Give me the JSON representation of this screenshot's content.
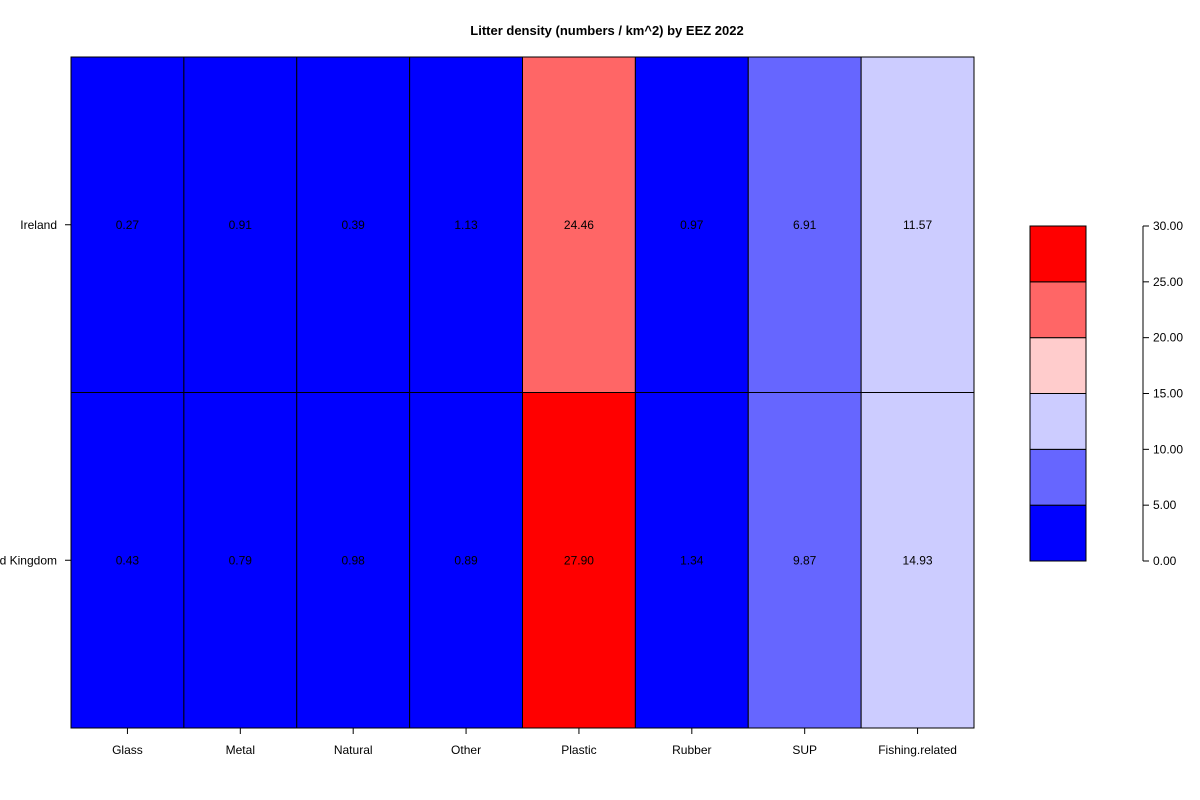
{
  "chart_data": {
    "type": "heatmap",
    "title": "Litter density (numbers / km^2) by EEZ 2022",
    "xlabel": "",
    "ylabel": "",
    "columns": [
      "Glass",
      "Metal",
      "Natural",
      "Other",
      "Plastic",
      "Rubber",
      "SUP",
      "Fishing.related"
    ],
    "rows": [
      "Ireland",
      "United Kingdom"
    ],
    "values": [
      [
        0.27,
        0.91,
        0.39,
        1.13,
        24.46,
        0.97,
        6.91,
        11.57
      ],
      [
        0.43,
        0.79,
        0.98,
        0.89,
        27.9,
        1.34,
        9.87,
        14.93
      ]
    ],
    "value_labels": [
      [
        "0.27",
        "0.91",
        "0.39",
        "1.13",
        "24.46",
        "0.97",
        "6.91",
        "11.57"
      ],
      [
        "0.43",
        "0.79",
        "0.98",
        "0.89",
        "27.90",
        "1.34",
        "9.87",
        "14.93"
      ]
    ],
    "color_scale": {
      "breaks": [
        0,
        5,
        10,
        15,
        20,
        25,
        30
      ],
      "colors": [
        "#0000ff",
        "#6666ff",
        "#ccccff",
        "#ffcccc",
        "#ff6666",
        "#ff0000"
      ],
      "tick_labels": [
        "0.00",
        "5.00",
        "10.00",
        "15.00",
        "20.00",
        "25.00",
        "30.00"
      ],
      "range": [
        0,
        30
      ]
    },
    "legend": "right",
    "grid": false
  }
}
